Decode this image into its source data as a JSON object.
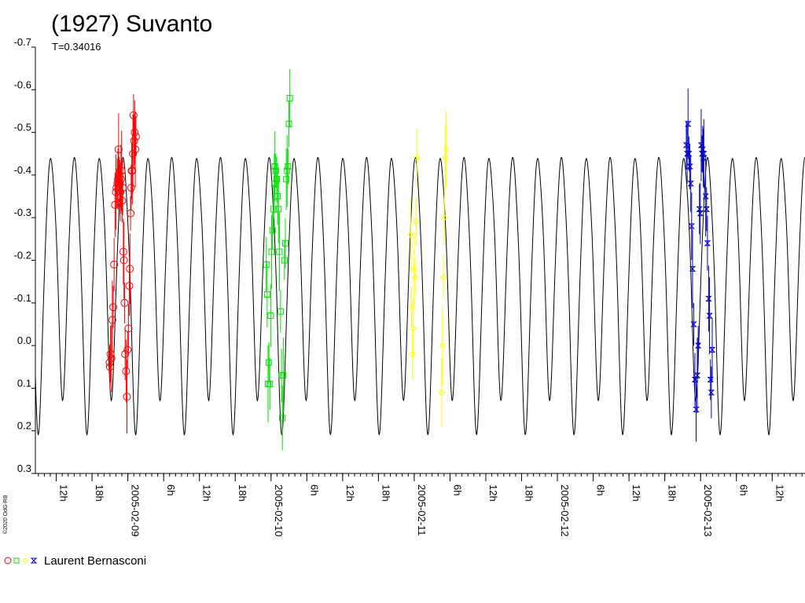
{
  "chart_data": {
    "type": "scatter",
    "title": "(1927) Suvanto",
    "subtitle": "T=0.34016",
    "credit": "©2020 OdG-RB",
    "y_axis": {
      "range": [
        -0.7,
        0.3
      ],
      "inverted": true,
      "tick_labels": [
        "-0.7",
        "-0.6",
        "-0.5",
        "-0.4",
        "-0.3",
        "-0.2",
        "-0.1",
        "0.0",
        "0.1",
        "0.2",
        "0.3"
      ]
    },
    "x_axis": {
      "unit": "hours",
      "range": [
        8.5,
        137.5
      ],
      "tick_labels": [
        {
          "x": 12,
          "label": "12h"
        },
        {
          "x": 18,
          "label": "18h"
        },
        {
          "x": 24,
          "label": "2005-02-09"
        },
        {
          "x": 30,
          "label": "6h"
        },
        {
          "x": 36,
          "label": "12h"
        },
        {
          "x": 42,
          "label": "18h"
        },
        {
          "x": 48,
          "label": "2005-02-10"
        },
        {
          "x": 54,
          "label": "6h"
        },
        {
          "x": 60,
          "label": "12h"
        },
        {
          "x": 66,
          "label": "18h"
        },
        {
          "x": 72,
          "label": "2005-02-11"
        },
        {
          "x": 78,
          "label": "6h"
        },
        {
          "x": 84,
          "label": "12h"
        },
        {
          "x": 90,
          "label": "18h"
        },
        {
          "x": 96,
          "label": "2005-02-12"
        },
        {
          "x": 102,
          "label": "6h"
        },
        {
          "x": 108,
          "label": "12h"
        },
        {
          "x": 114,
          "label": "18h"
        },
        {
          "x": 120,
          "label": "2005-02-13"
        },
        {
          "x": 126,
          "label": "6h"
        },
        {
          "x": 132,
          "label": "12h"
        }
      ]
    },
    "model_curve": {
      "period_hours": 8.16384,
      "mean": -0.17,
      "amplitude": 0.29,
      "harmonic2": 0.04,
      "harmonic4": 0.035,
      "harmonic6": 0.015,
      "phase_hours": 9.0,
      "color": "#000000"
    },
    "legend": {
      "label": "Laurent Bernasconi",
      "placement": "bottom-left"
    },
    "series": [
      {
        "marker": "circle",
        "color": "#ff0000",
        "points": [
          [
            20.95,
            0.04
          ],
          [
            21.0,
            0.05
          ],
          [
            21.1,
            0.02
          ],
          [
            21.25,
            0.03
          ],
          [
            21.4,
            -0.06
          ],
          [
            21.55,
            -0.09
          ],
          [
            21.7,
            -0.19
          ],
          [
            21.85,
            -0.33
          ],
          [
            22.0,
            -0.36
          ],
          [
            22.1,
            -0.37
          ],
          [
            22.25,
            -0.38
          ],
          [
            22.35,
            -0.39
          ],
          [
            22.45,
            -0.46
          ],
          [
            22.55,
            -0.4
          ],
          [
            22.65,
            -0.38
          ],
          [
            22.75,
            -0.36
          ],
          [
            22.85,
            -0.39
          ],
          [
            22.95,
            -0.41
          ],
          [
            23.05,
            -0.34
          ],
          [
            23.15,
            -0.37
          ],
          [
            23.25,
            -0.22
          ],
          [
            23.35,
            -0.2
          ],
          [
            23.45,
            -0.1
          ],
          [
            23.55,
            0.02
          ],
          [
            23.7,
            0.06
          ],
          [
            23.85,
            0.12
          ],
          [
            23.95,
            0.01
          ],
          [
            24.1,
            -0.04
          ],
          [
            24.25,
            -0.14
          ],
          [
            24.35,
            -0.18
          ],
          [
            24.45,
            -0.31
          ],
          [
            24.55,
            -0.37
          ],
          [
            24.65,
            -0.41
          ],
          [
            24.75,
            -0.41
          ],
          [
            24.85,
            -0.45
          ],
          [
            24.95,
            -0.54
          ],
          [
            25.05,
            -0.48
          ],
          [
            25.15,
            -0.5
          ],
          [
            25.25,
            -0.46
          ],
          [
            25.35,
            -0.49
          ]
        ]
      },
      {
        "marker": "square",
        "color": "#00e000",
        "points": [
          [
            47.2,
            -0.19
          ],
          [
            47.35,
            -0.12
          ],
          [
            47.5,
            0.09
          ],
          [
            47.65,
            0.04
          ],
          [
            47.8,
            0.09
          ],
          [
            47.95,
            -0.07
          ],
          [
            48.1,
            -0.22
          ],
          [
            48.25,
            -0.27
          ],
          [
            48.4,
            -0.32
          ],
          [
            48.55,
            -0.38
          ],
          [
            48.65,
            -0.42
          ],
          [
            48.8,
            -0.41
          ],
          [
            48.95,
            -0.39
          ],
          [
            49.1,
            -0.35
          ],
          [
            49.25,
            -0.32
          ],
          [
            49.4,
            -0.22
          ],
          [
            49.6,
            -0.08
          ],
          [
            49.75,
            0.07
          ],
          [
            49.9,
            0.17
          ],
          [
            50.05,
            0.07
          ],
          [
            50.25,
            -0.2
          ],
          [
            50.4,
            -0.24
          ],
          [
            50.55,
            -0.39
          ],
          [
            50.7,
            -0.41
          ],
          [
            50.85,
            -0.42
          ],
          [
            51.0,
            -0.52
          ],
          [
            51.15,
            -0.58
          ]
        ]
      },
      {
        "marker": "diamond",
        "color": "#ffff00",
        "points": [
          [
            71.4,
            -0.26
          ],
          [
            71.55,
            -0.09
          ],
          [
            71.7,
            0.02
          ],
          [
            71.85,
            -0.04
          ],
          [
            72.0,
            -0.18
          ],
          [
            72.15,
            -0.16
          ],
          [
            72.3,
            -0.29
          ],
          [
            72.45,
            -0.44
          ],
          [
            76.6,
            0.11
          ],
          [
            76.75,
            0.0
          ],
          [
            76.9,
            -0.16
          ],
          [
            77.05,
            -0.3
          ],
          [
            77.2,
            -0.44
          ],
          [
            77.35,
            -0.46
          ]
        ]
      },
      {
        "marker": "hourglass",
        "color": "#0000cc",
        "points": [
          [
            117.6,
            -0.47
          ],
          [
            117.75,
            -0.45
          ],
          [
            117.9,
            -0.52
          ],
          [
            118.05,
            -0.45
          ],
          [
            118.2,
            -0.42
          ],
          [
            118.35,
            -0.38
          ],
          [
            118.5,
            -0.28
          ],
          [
            118.65,
            -0.18
          ],
          [
            118.85,
            -0.05
          ],
          [
            119.05,
            0.08
          ],
          [
            119.25,
            0.15
          ],
          [
            119.45,
            0.07
          ],
          [
            119.6,
            0.0
          ],
          [
            119.8,
            -0.32
          ],
          [
            119.95,
            -0.31
          ],
          [
            120.1,
            -0.47
          ],
          [
            120.25,
            -0.45
          ],
          [
            120.35,
            -0.46
          ],
          [
            120.45,
            -0.44
          ],
          [
            120.55,
            -0.45
          ],
          [
            120.85,
            -0.35
          ],
          [
            121.0,
            -0.32
          ],
          [
            121.15,
            -0.24
          ],
          [
            121.35,
            -0.11
          ],
          [
            121.5,
            -0.07
          ],
          [
            121.65,
            0.08
          ],
          [
            121.8,
            0.11
          ],
          [
            121.95,
            0.01
          ]
        ]
      }
    ]
  }
}
